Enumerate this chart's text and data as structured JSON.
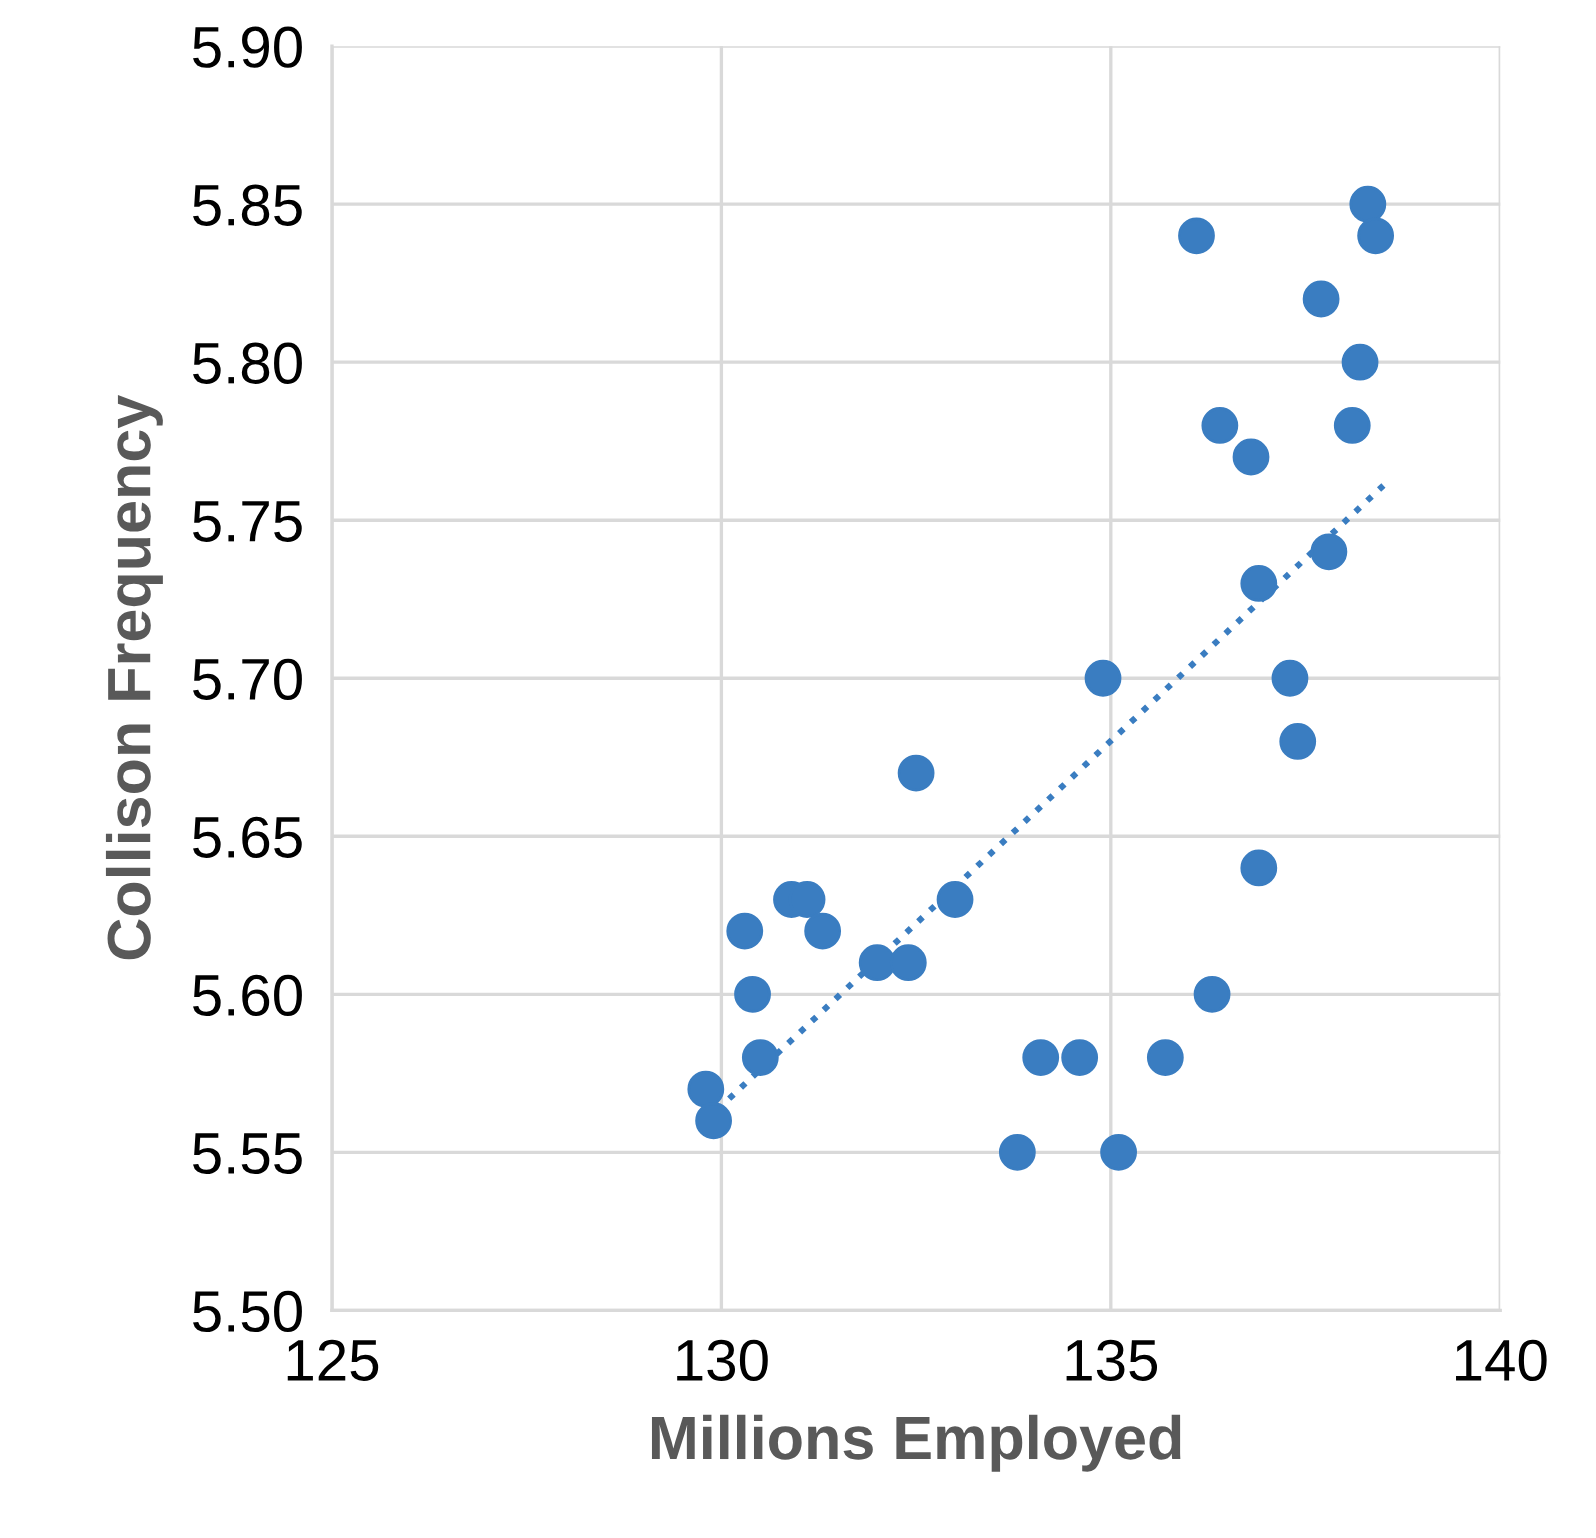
{
  "chart_data": {
    "type": "scatter",
    "xlabel": "Millions Employed",
    "ylabel": "Collison Frequency",
    "xlim": [
      125,
      140
    ],
    "xticks": [
      125,
      130,
      135,
      140
    ],
    "ylim": [
      5.5,
      5.9
    ],
    "yticks": [
      {
        "value": 5.5,
        "label": "5.50"
      },
      {
        "value": 5.55,
        "label": "5.55"
      },
      {
        "value": 5.6,
        "label": "5.60"
      },
      {
        "value": 5.65,
        "label": "5.65"
      },
      {
        "value": 5.7,
        "label": "5.70"
      },
      {
        "value": 5.75,
        "label": "5.75"
      },
      {
        "value": 5.8,
        "label": "5.80"
      },
      {
        "value": 5.85,
        "label": "5.85"
      },
      {
        "value": 5.9,
        "label": "5.90"
      }
    ],
    "grid": true,
    "series": [
      {
        "marker": "circle",
        "color": "#3a7dc1",
        "x": [
          129.8,
          129.9,
          130.3,
          130.4,
          130.5,
          130.9,
          131.1,
          131.3,
          132.0,
          132.4,
          132.5,
          133.0,
          133.8,
          134.1,
          134.6,
          134.9,
          135.1,
          135.7,
          136.1,
          136.3,
          136.4,
          136.8,
          136.9,
          136.9,
          137.3,
          137.4,
          137.7,
          137.8,
          138.1,
          138.2,
          138.3,
          138.4
        ],
        "values": [
          5.57,
          5.56,
          5.62,
          5.6,
          5.58,
          5.63,
          5.63,
          5.62,
          5.61,
          5.61,
          5.67,
          5.63,
          5.55,
          5.58,
          5.58,
          5.7,
          5.55,
          5.58,
          5.84,
          5.6,
          5.78,
          5.77,
          5.64,
          5.73,
          5.7,
          5.68,
          5.82,
          5.74,
          5.78,
          5.8,
          5.85,
          5.84
        ]
      },
      {
        "type": "line",
        "color": "#3a7dc1",
        "line_style": "dotted",
        "marker": "none",
        "x": [
          130.1,
          138.5
        ],
        "values": [
          5.567,
          5.761
        ]
      }
    ]
  }
}
